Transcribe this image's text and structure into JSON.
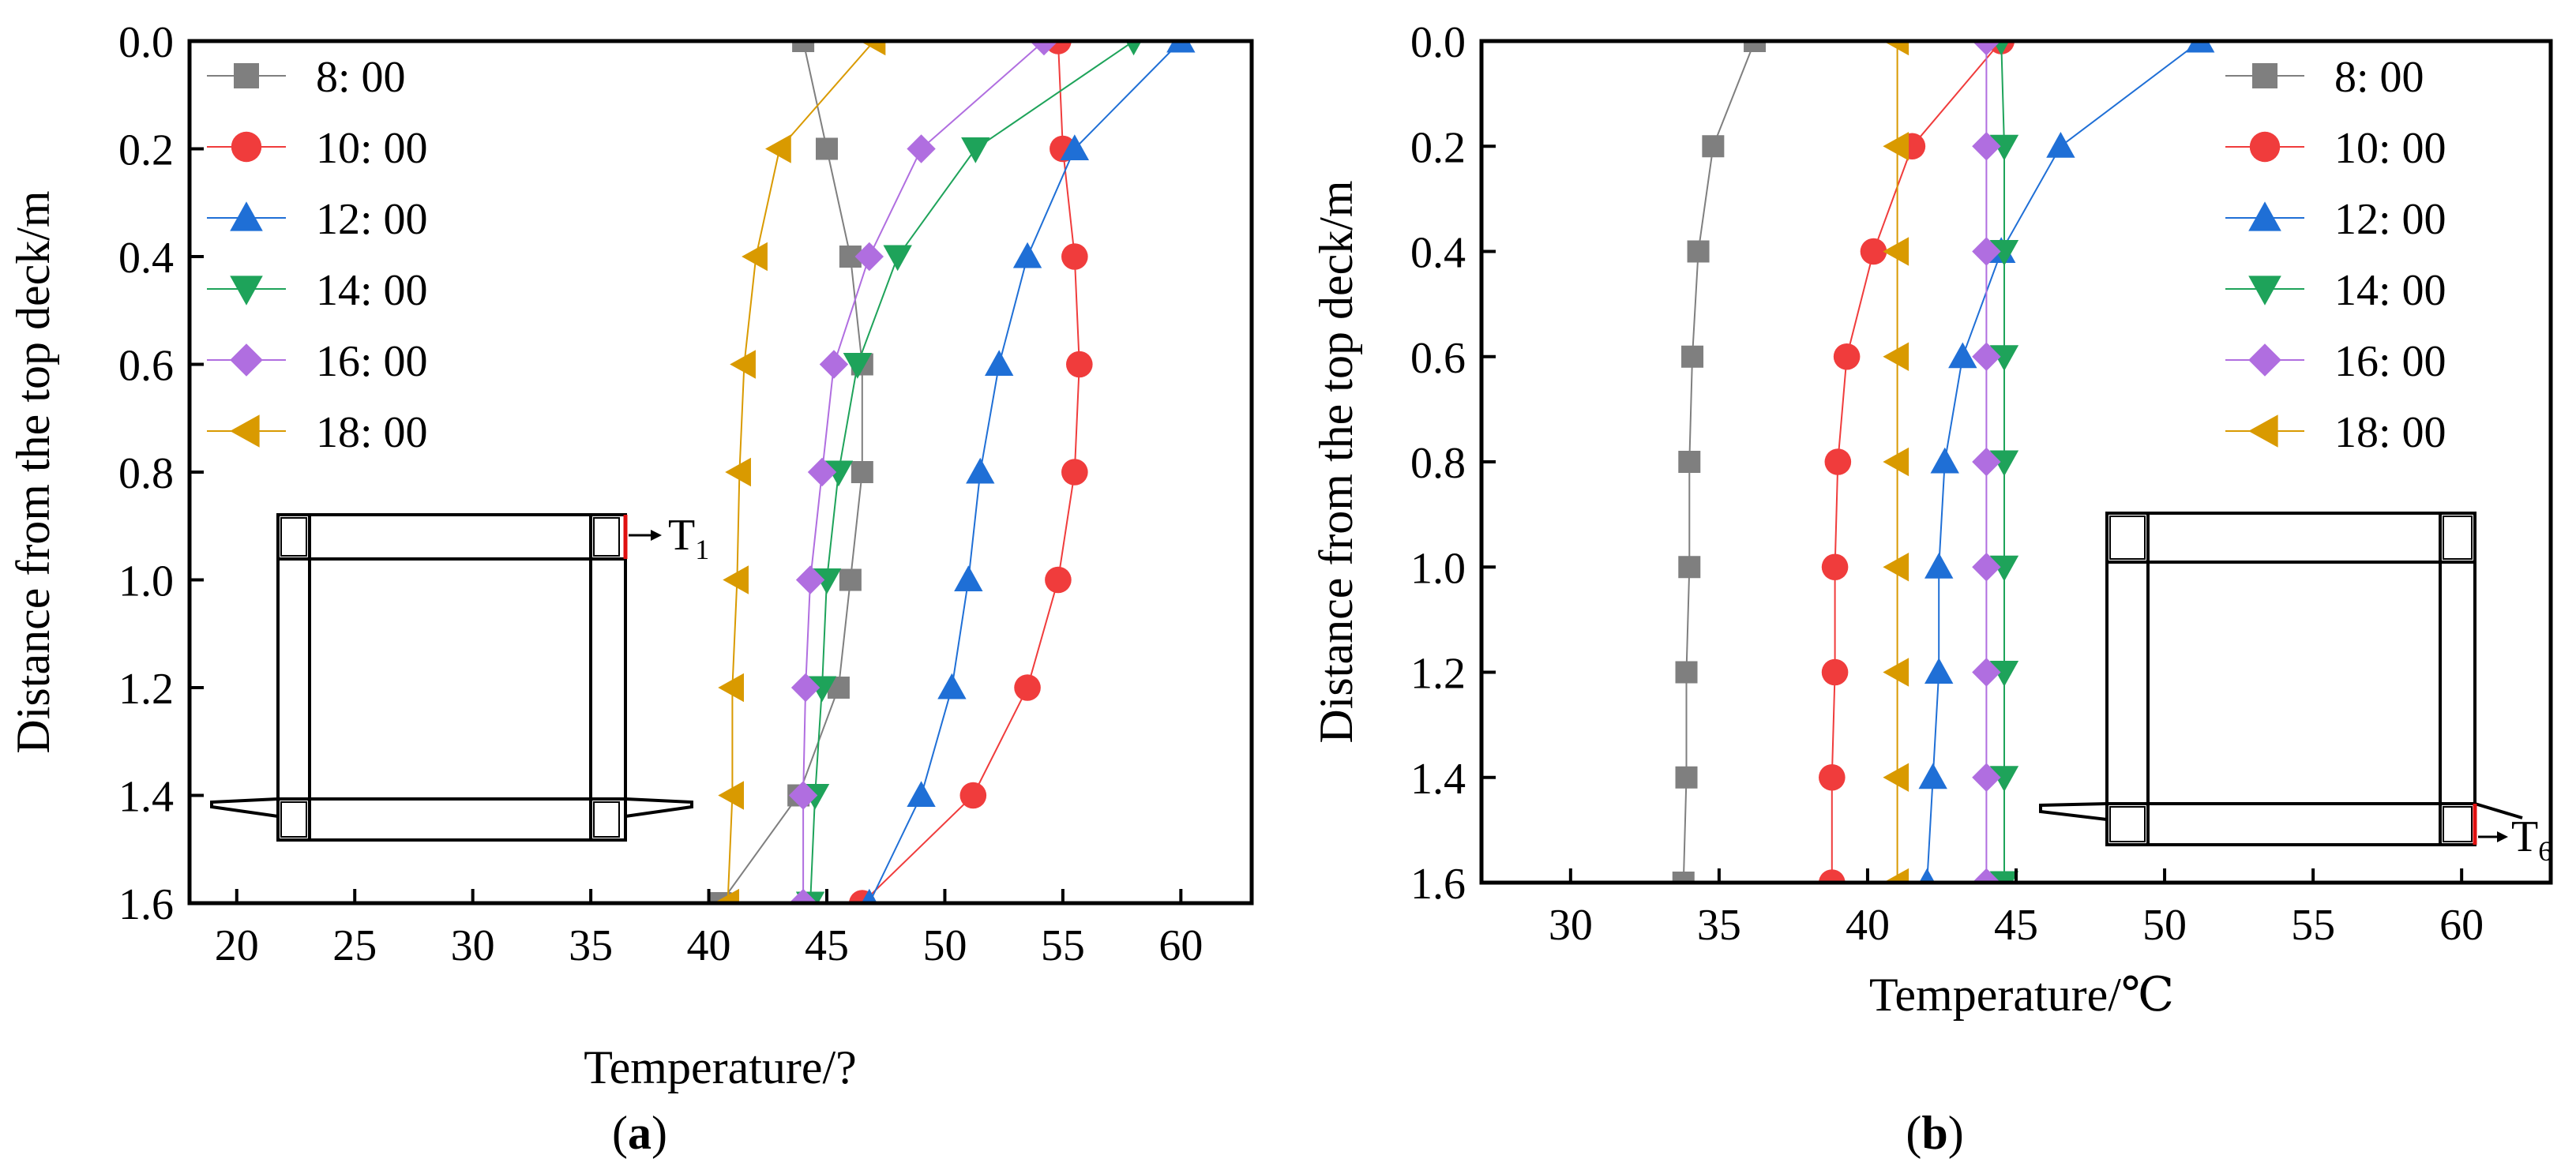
{
  "figure": {
    "panel_labels": [
      {
        "open": "(",
        "letter": "a",
        "close": ")"
      },
      {
        "open": "(",
        "letter": "b",
        "close": ")"
      }
    ],
    "inset_labels": [
      {
        "main": "T",
        "sub": "1"
      },
      {
        "main": "T",
        "sub": "6"
      }
    ]
  },
  "chart_data": [
    {
      "type": "line",
      "panel": "a",
      "title": "",
      "xlabel": "Temperature/?",
      "ylabel": "Distance from the top deck/m",
      "xlim": [
        18,
        63
      ],
      "ylim": [
        0,
        1.6
      ],
      "y_inverted": true,
      "xticks": [
        20,
        25,
        30,
        35,
        40,
        45,
        50,
        55,
        60
      ],
      "yticks": [
        0.0,
        0.2,
        0.4,
        0.6,
        0.8,
        1.0,
        1.2,
        1.4,
        1.6
      ],
      "ytick_labels": [
        "0.0",
        "0.2",
        "0.4",
        "0.6",
        "0.8",
        "1.0",
        "1.2",
        "1.4",
        "1.6"
      ],
      "legend_position": "top-left",
      "y": [
        0.0,
        0.2,
        0.4,
        0.6,
        0.8,
        1.0,
        1.2,
        1.4,
        1.6
      ],
      "series": [
        {
          "name": "8:   00",
          "color": "#7f7f7f",
          "marker": "square",
          "x": [
            44.0,
            45.0,
            46.0,
            46.5,
            46.5,
            46.0,
            45.5,
            43.8,
            40.5
          ]
        },
        {
          "name": "10:   00",
          "color": "#f03c3c",
          "marker": "circle",
          "x": [
            54.8,
            55.0,
            55.5,
            55.7,
            55.5,
            54.8,
            53.5,
            51.2,
            46.5
          ]
        },
        {
          "name": "12:   00",
          "color": "#1f6fd6",
          "marker": "triangle-up",
          "x": [
            60.0,
            55.5,
            53.5,
            52.3,
            51.5,
            51.0,
            50.3,
            49.0,
            46.8
          ]
        },
        {
          "name": "14:   00",
          "color": "#1ea35a",
          "marker": "triangle-down",
          "x": [
            58.0,
            51.3,
            48.0,
            46.3,
            45.5,
            45.0,
            44.8,
            44.5,
            44.3
          ]
        },
        {
          "name": "16:   00",
          "color": "#b06ee0",
          "marker": "diamond",
          "x": [
            54.2,
            49.0,
            46.8,
            45.3,
            44.8,
            44.3,
            44.1,
            44.0,
            44.0
          ]
        },
        {
          "name": "18:   00",
          "color": "#d99a00",
          "marker": "triangle-left",
          "x": [
            47.0,
            43.0,
            42.0,
            41.5,
            41.3,
            41.2,
            41.0,
            41.0,
            40.8
          ]
        }
      ]
    },
    {
      "type": "line",
      "panel": "b",
      "title": "",
      "xlabel": "Temperature/℃",
      "ylabel": "Distance from the top deck/m",
      "xlim": [
        27,
        63
      ],
      "ylim": [
        0,
        1.6
      ],
      "y_inverted": true,
      "xticks": [
        30,
        35,
        40,
        45,
        50,
        55,
        60
      ],
      "yticks": [
        0.0,
        0.2,
        0.4,
        0.6,
        0.8,
        1.0,
        1.2,
        1.4,
        1.6
      ],
      "ytick_labels": [
        "0.0",
        "0.2",
        "0.4",
        "0.6",
        "0.8",
        "1.0",
        "1.2",
        "1.4",
        "1.6"
      ],
      "legend_position": "top-right",
      "y": [
        0.0,
        0.2,
        0.4,
        0.6,
        0.8,
        1.0,
        1.2,
        1.4,
        1.6
      ],
      "series": [
        {
          "name": "8:   00",
          "color": "#7f7f7f",
          "marker": "square",
          "x": [
            36.2,
            34.8,
            34.3,
            34.1,
            34.0,
            34.0,
            33.9,
            33.9,
            33.8
          ]
        },
        {
          "name": "10:   00",
          "color": "#f03c3c",
          "marker": "circle",
          "x": [
            44.5,
            41.5,
            40.2,
            39.3,
            39.0,
            38.9,
            38.9,
            38.8,
            38.8
          ]
        },
        {
          "name": "12:   00",
          "color": "#1f6fd6",
          "marker": "triangle-up",
          "x": [
            51.2,
            46.5,
            44.5,
            43.2,
            42.6,
            42.4,
            42.4,
            42.2,
            42.0
          ]
        },
        {
          "name": "14:   00",
          "color": "#1ea35a",
          "marker": "triangle-down",
          "x": [
            44.5,
            44.6,
            44.6,
            44.6,
            44.6,
            44.6,
            44.6,
            44.6,
            44.6
          ]
        },
        {
          "name": "16:   00",
          "color": "#b06ee0",
          "marker": "diamond",
          "x": [
            44.0,
            44.0,
            44.0,
            44.0,
            44.0,
            44.0,
            44.0,
            44.0,
            44.0
          ]
        },
        {
          "name": "18:   00",
          "color": "#d99a00",
          "marker": "triangle-left",
          "x": [
            41.0,
            41.0,
            41.0,
            41.0,
            41.0,
            41.0,
            41.0,
            41.0,
            41.0
          ]
        }
      ]
    }
  ]
}
